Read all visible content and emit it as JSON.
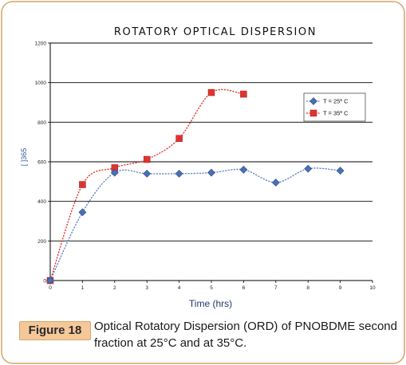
{
  "caption": {
    "figure_label": "Figure 18",
    "text": "Optical Rotatory Dispersion (ORD) of PNOBDME second fraction at 25°C and at 35°C."
  },
  "colors": {
    "frame_border": "#d9a36a",
    "caption_badge": "#f5c89a",
    "series_25": "#4a6fb5",
    "series_35": "#e0332f"
  },
  "chart_data": {
    "type": "line",
    "title": "ROTATORY OPTICAL DISPERSION",
    "xlabel": "Time (hrs)",
    "ylabel": "[ ]365",
    "xlim": [
      0,
      10
    ],
    "ylim": [
      0,
      1200
    ],
    "x_ticks": [
      0,
      1,
      2,
      3,
      4,
      5,
      6,
      7,
      8,
      9,
      10
    ],
    "y_ticks": [
      0,
      200,
      400,
      600,
      800,
      1000,
      1200
    ],
    "grid": "horizontal",
    "legend_position": "right",
    "series": [
      {
        "name": "T = 25º C",
        "marker": "diamond",
        "x": [
          0,
          1,
          2,
          3,
          4,
          5,
          6,
          7,
          8,
          9
        ],
        "values": [
          0,
          345,
          545,
          540,
          540,
          545,
          560,
          495,
          565,
          555
        ]
      },
      {
        "name": "T = 35º C",
        "marker": "square",
        "x": [
          0,
          1,
          2,
          3,
          4,
          5,
          6
        ],
        "values": [
          0,
          485,
          570,
          612,
          718,
          950,
          942
        ]
      }
    ]
  }
}
